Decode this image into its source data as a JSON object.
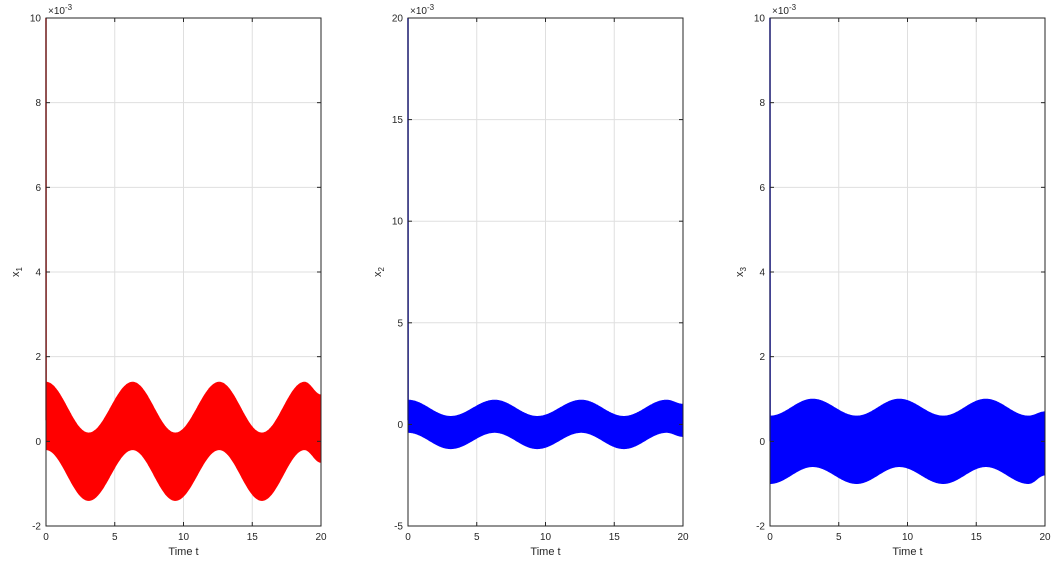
{
  "chart_data": [
    {
      "type": "line",
      "title": "",
      "xlabel": "Time t",
      "ylabel": "x",
      "ylabel_sub": "1",
      "exponent_label": "10",
      "exponent_power": "-3",
      "xlim": [
        0,
        20
      ],
      "ylim": [
        -2,
        10
      ],
      "xticks": [
        0,
        5,
        10,
        15,
        20
      ],
      "yticks": [
        -2,
        0,
        2,
        4,
        6,
        8,
        10
      ],
      "grid": true,
      "series": [
        {
          "color": "#ff0000",
          "envelope": {
            "t": [
              0,
              3.1,
              6.3,
              9.4,
              12.6,
              15.7,
              18.8,
              20
            ],
            "upper": [
              1.4,
              0.2,
              1.4,
              0.2,
              1.4,
              0.2,
              1.4,
              1.1
            ],
            "lower": [
              -0.2,
              -1.4,
              -0.2,
              -1.4,
              -0.2,
              -1.4,
              -0.2,
              -0.5
            ]
          },
          "initial_spike": {
            "t": [
              0,
              0.01,
              0.02
            ],
            "y": [
              10,
              0.5,
              1.4
            ]
          }
        }
      ]
    },
    {
      "type": "line",
      "title": "",
      "xlabel": "Time t",
      "ylabel": "x",
      "ylabel_sub": "2",
      "exponent_label": "10",
      "exponent_power": "-3",
      "xlim": [
        0,
        20
      ],
      "ylim": [
        -5,
        20
      ],
      "xticks": [
        0,
        5,
        10,
        15,
        20
      ],
      "yticks": [
        -5,
        0,
        5,
        10,
        15,
        20
      ],
      "grid": true,
      "series": [
        {
          "color": "#0000ff",
          "envelope": {
            "t": [
              0,
              3.1,
              6.3,
              9.4,
              12.6,
              15.7,
              18.8,
              20
            ],
            "upper": [
              1.2,
              0.4,
              1.2,
              0.4,
              1.2,
              0.4,
              1.2,
              1.0
            ],
            "lower": [
              -0.4,
              -1.2,
              -0.4,
              -1.2,
              -0.4,
              -1.2,
              -0.4,
              -0.6
            ]
          },
          "initial_spike": {
            "t": [
              0,
              0.01,
              0.02
            ],
            "y": [
              20,
              0.2,
              1.2
            ]
          }
        }
      ]
    },
    {
      "type": "line",
      "title": "",
      "xlabel": "Time t",
      "ylabel": "x",
      "ylabel_sub": "3",
      "exponent_label": "10",
      "exponent_power": "-3",
      "xlim": [
        0,
        20
      ],
      "ylim": [
        -2,
        10
      ],
      "xticks": [
        0,
        5,
        10,
        15,
        20
      ],
      "yticks": [
        -2,
        0,
        2,
        4,
        6,
        8,
        10
      ],
      "grid": true,
      "series": [
        {
          "color": "#0000ff",
          "envelope": {
            "t": [
              0,
              3.1,
              6.3,
              9.4,
              12.6,
              15.7,
              18.8,
              20
            ],
            "upper": [
              0.6,
              1.0,
              0.6,
              1.0,
              0.6,
              1.0,
              0.6,
              0.7
            ],
            "lower": [
              -1.0,
              -0.6,
              -1.0,
              -0.6,
              -1.0,
              -0.6,
              -1.0,
              -0.8
            ]
          },
          "initial_spike": {
            "t": [
              0,
              0.01,
              0.02
            ],
            "y": [
              10,
              0.0,
              0.6
            ]
          }
        }
      ]
    }
  ]
}
